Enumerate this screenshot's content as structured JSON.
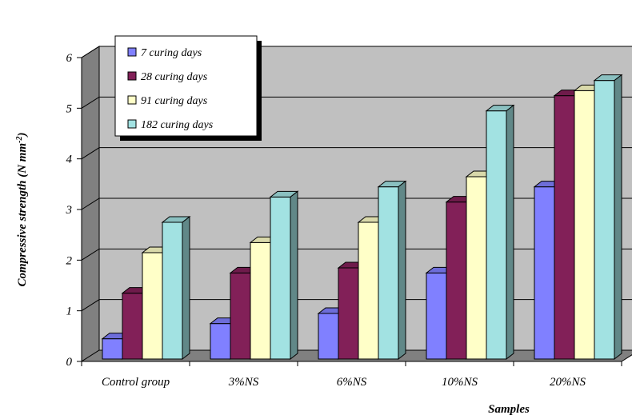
{
  "chart_data": {
    "type": "bar",
    "categories": [
      "Control group",
      "3%NS",
      "6%NS",
      "10%NS",
      "20%NS"
    ],
    "series": [
      {
        "name": "7 curing days",
        "values": [
          0.4,
          0.7,
          0.9,
          1.7,
          3.4
        ],
        "color": "#8080ff"
      },
      {
        "name": "28 curing days",
        "values": [
          1.3,
          1.7,
          1.8,
          3.1,
          5.2
        ],
        "color": "#822058"
      },
      {
        "name": "91 curing days",
        "values": [
          2.1,
          2.3,
          2.7,
          3.6,
          5.3
        ],
        "color": "#ffffc8"
      },
      {
        "name": "182 curing days",
        "values": [
          2.7,
          3.2,
          3.4,
          4.9,
          5.5
        ],
        "color": "#a2e2e2"
      }
    ],
    "y_ticks": [
      "0",
      "1",
      "2",
      "3",
      "4",
      "5",
      "6"
    ],
    "xlabel": "Samples",
    "ylabel_main": "Compressive strength (N mm",
    "ylabel_sup": "-2",
    "ylabel_end": ")",
    "ylim": [
      0,
      6
    ],
    "grid": true,
    "legend_position": "top-left",
    "colors": {
      "wall": "#c0c0c0",
      "wall_side": "#808080",
      "floor": "#808080",
      "grid": "#000000"
    }
  }
}
